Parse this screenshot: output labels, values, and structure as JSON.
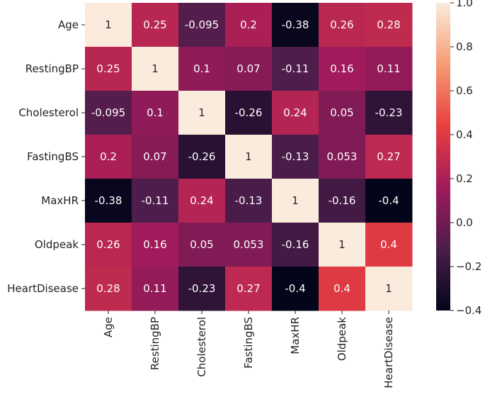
{
  "chart_data": {
    "type": "heatmap",
    "title": "",
    "xlabel": "",
    "ylabel": "",
    "labels": [
      "Age",
      "RestingBP",
      "Cholesterol",
      "FastingBS",
      "MaxHR",
      "Oldpeak",
      "HeartDisease"
    ],
    "matrix": [
      [
        1,
        0.25,
        -0.095,
        0.2,
        -0.38,
        0.26,
        0.28
      ],
      [
        0.25,
        1,
        0.1,
        0.07,
        -0.11,
        0.16,
        0.11
      ],
      [
        -0.095,
        0.1,
        1,
        -0.26,
        0.24,
        0.05,
        -0.23
      ],
      [
        0.2,
        0.07,
        -0.26,
        1,
        -0.13,
        0.053,
        0.27
      ],
      [
        -0.38,
        -0.11,
        0.24,
        -0.13,
        1,
        -0.16,
        -0.4
      ],
      [
        0.26,
        0.16,
        0.05,
        0.053,
        -0.16,
        1,
        0.4
      ],
      [
        0.28,
        0.11,
        -0.23,
        0.27,
        -0.4,
        0.4,
        1
      ]
    ],
    "annotations": [
      [
        "1",
        "0.25",
        "-0.095",
        "0.2",
        "-0.38",
        "0.26",
        "0.28"
      ],
      [
        "0.25",
        "1",
        "0.1",
        "0.07",
        "-0.11",
        "0.16",
        "0.11"
      ],
      [
        "-0.095",
        "0.1",
        "1",
        "-0.26",
        "0.24",
        "0.05",
        "-0.23"
      ],
      [
        "0.2",
        "0.07",
        "-0.26",
        "1",
        "-0.13",
        "0.053",
        "0.27"
      ],
      [
        "-0.38",
        "-0.11",
        "0.24",
        "-0.13",
        "1",
        "-0.16",
        "-0.4"
      ],
      [
        "0.26",
        "0.16",
        "0.05",
        "0.053",
        "-0.16",
        "1",
        "0.4"
      ],
      [
        "0.28",
        "0.11",
        "-0.23",
        "0.27",
        "-0.4",
        "0.4",
        "1"
      ]
    ],
    "colorbar": {
      "range": [
        -0.4,
        1.0
      ],
      "ticks": [
        1.0,
        0.8,
        0.6,
        0.4,
        0.2,
        0.0,
        -0.2,
        -0.4
      ],
      "tick_labels": [
        "1.0",
        "0.8",
        "0.6",
        "0.4",
        "0.2",
        "0.0",
        "−0.2",
        "−0.4"
      ],
      "colormap": "rocket",
      "colormap_stops": [
        "#03051a",
        "#4c1d4b",
        "#a11a5b",
        "#e83f3f",
        "#f69c73",
        "#faebdd"
      ]
    }
  }
}
